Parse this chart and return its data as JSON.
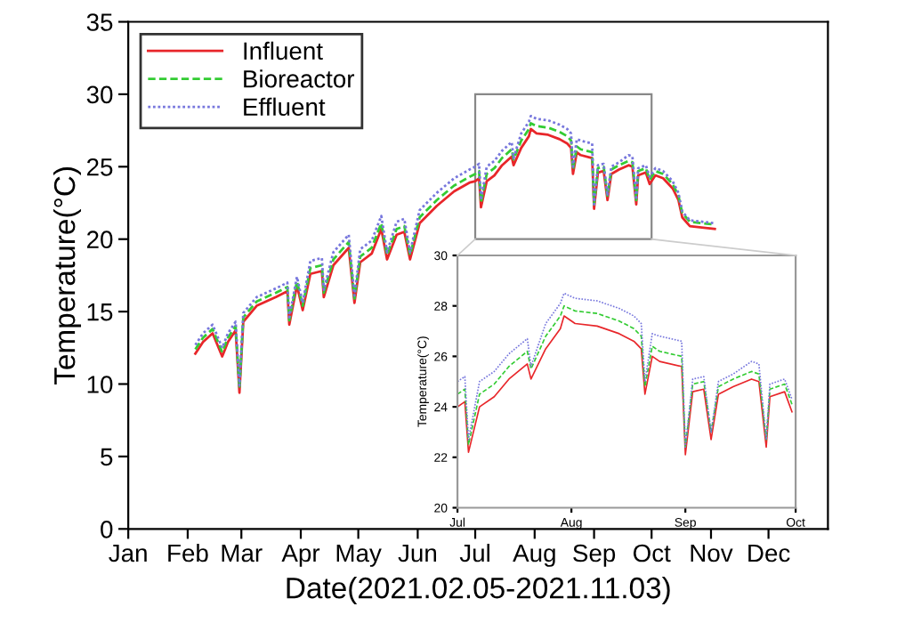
{
  "chart_data": [
    {
      "type": "line",
      "xlabel": "Date(2021.02.05-2021.11.03)",
      "ylabel": "Temperature(°C)",
      "x": [
        "2021-02-05",
        "2021-02-09",
        "2021-02-14",
        "2021-02-19",
        "2021-02-22",
        "2021-02-26",
        "2021-02-28",
        "2021-03-02",
        "2021-03-09",
        "2021-03-19",
        "2021-03-25",
        "2021-03-26",
        "2021-03-30",
        "2021-04-02",
        "2021-04-06",
        "2021-04-12",
        "2021-04-13",
        "2021-04-18",
        "2021-04-26",
        "2021-04-29",
        "2021-05-02",
        "2021-05-08",
        "2021-05-13",
        "2021-05-16",
        "2021-05-21",
        "2021-05-25",
        "2021-05-28",
        "2021-06-02",
        "2021-06-11",
        "2021-06-20",
        "2021-06-28",
        "2021-07-01",
        "2021-07-03",
        "2021-07-04",
        "2021-07-07",
        "2021-07-11",
        "2021-07-15",
        "2021-07-20",
        "2021-07-21",
        "2021-07-25",
        "2021-07-29",
        "2021-07-30",
        "2021-08-02",
        "2021-08-08",
        "2021-08-14",
        "2021-08-18",
        "2021-08-20",
        "2021-08-21",
        "2021-08-23",
        "2021-08-25",
        "2021-08-31",
        "2021-09-01",
        "2021-09-03",
        "2021-09-06",
        "2021-09-08",
        "2021-09-10",
        "2021-09-14",
        "2021-09-19",
        "2021-09-21",
        "2021-09-23",
        "2021-09-24",
        "2021-09-28",
        "2021-09-30",
        "2021-10-03",
        "2021-10-07",
        "2021-10-12",
        "2021-10-15",
        "2021-10-17",
        "2021-10-21",
        "2021-11-03"
      ],
      "series": [
        {
          "name": "Influent",
          "color": "#e8262a",
          "line_style": "solid",
          "values": [
            12.1,
            12.9,
            13.5,
            11.9,
            12.9,
            13.7,
            9.4,
            14.3,
            15.4,
            16.0,
            16.4,
            14.1,
            16.8,
            15.1,
            17.6,
            17.8,
            16.0,
            18.2,
            19.4,
            15.6,
            18.4,
            19.0,
            20.7,
            18.6,
            20.3,
            20.5,
            18.6,
            21.1,
            22.3,
            23.3,
            23.9,
            24.0,
            24.2,
            22.2,
            24.0,
            24.4,
            25.1,
            25.7,
            25.1,
            26.3,
            27.1,
            27.6,
            27.3,
            27.2,
            26.9,
            26.6,
            26.3,
            24.5,
            26.0,
            25.8,
            25.6,
            22.1,
            24.6,
            24.7,
            22.7,
            24.5,
            24.8,
            25.1,
            25.0,
            22.4,
            24.4,
            24.6,
            23.8,
            24.4,
            24.2,
            23.5,
            22.7,
            21.5,
            20.9,
            20.7
          ]
        },
        {
          "name": "Bioreactor",
          "color": "#33cc33",
          "line_style": "dashed",
          "values": [
            12.4,
            13.2,
            13.8,
            12.2,
            13.2,
            14.0,
            9.7,
            14.6,
            15.7,
            16.3,
            16.7,
            14.4,
            17.1,
            15.4,
            18.0,
            18.2,
            16.3,
            18.6,
            19.8,
            15.9,
            18.8,
            19.4,
            21.1,
            18.9,
            20.7,
            20.9,
            18.9,
            21.5,
            22.7,
            23.7,
            24.3,
            24.5,
            24.7,
            22.5,
            24.5,
            24.9,
            25.6,
            26.2,
            25.5,
            26.8,
            27.6,
            28.0,
            27.8,
            27.7,
            27.4,
            27.1,
            26.8,
            24.8,
            26.4,
            26.2,
            26.0,
            22.4,
            24.9,
            25.0,
            23.0,
            24.8,
            25.1,
            25.4,
            25.3,
            22.7,
            24.7,
            24.9,
            24.1,
            24.7,
            24.5,
            23.8,
            23.0,
            21.8,
            21.2,
            21.0
          ]
        },
        {
          "name": "Effluent",
          "color": "#7777dd",
          "line_style": "dotted",
          "values": [
            12.7,
            13.5,
            14.1,
            12.5,
            13.5,
            14.3,
            9.9,
            14.9,
            16.0,
            16.6,
            17.0,
            14.6,
            17.4,
            15.6,
            18.5,
            18.7,
            16.5,
            19.1,
            20.3,
            16.1,
            19.3,
            19.9,
            21.6,
            19.1,
            21.2,
            21.4,
            19.1,
            22.0,
            23.2,
            24.2,
            24.8,
            25.0,
            25.2,
            22.7,
            25.0,
            25.4,
            26.1,
            26.7,
            25.6,
            27.3,
            28.1,
            28.5,
            28.3,
            28.2,
            27.9,
            27.6,
            27.3,
            25.0,
            26.9,
            26.8,
            26.6,
            22.4,
            25.1,
            25.2,
            23.0,
            25.0,
            25.3,
            25.8,
            25.7,
            22.7,
            24.9,
            25.1,
            24.3,
            24.9,
            24.7,
            24.0,
            23.2,
            21.9,
            21.3,
            21.1
          ]
        }
      ],
      "xlim": [
        "2021-01-01",
        "2022-01-01"
      ],
      "xticks": [
        {
          "value": "2021-01-01",
          "label": "Jan"
        },
        {
          "value": "2021-02-01",
          "label": "Feb"
        },
        {
          "value": "2021-03-01",
          "label": "Mar"
        },
        {
          "value": "2021-04-01",
          "label": "Apr"
        },
        {
          "value": "2021-05-01",
          "label": "May"
        },
        {
          "value": "2021-06-01",
          "label": "Jun"
        },
        {
          "value": "2021-07-01",
          "label": "Jul"
        },
        {
          "value": "2021-08-01",
          "label": "Aug"
        },
        {
          "value": "2021-09-01",
          "label": "Sep"
        },
        {
          "value": "2021-10-01",
          "label": "Oct"
        },
        {
          "value": "2021-11-01",
          "label": "Nov"
        },
        {
          "value": "2021-12-01",
          "label": "Dec"
        }
      ],
      "ylim": [
        0,
        35
      ],
      "yticks": [
        0,
        5,
        10,
        15,
        20,
        25,
        30,
        35
      ],
      "grid": false,
      "legend": "top left",
      "marker": "none"
    },
    {
      "type": "line",
      "ylabel": "Temperature(°C)",
      "x": [
        "2021-07-01",
        "2021-07-03",
        "2021-07-04",
        "2021-07-07",
        "2021-07-11",
        "2021-07-15",
        "2021-07-20",
        "2021-07-21",
        "2021-07-25",
        "2021-07-29",
        "2021-07-30",
        "2021-08-02",
        "2021-08-08",
        "2021-08-14",
        "2021-08-18",
        "2021-08-20",
        "2021-08-21",
        "2021-08-23",
        "2021-08-25",
        "2021-08-31",
        "2021-09-01",
        "2021-09-03",
        "2021-09-06",
        "2021-09-08",
        "2021-09-10",
        "2021-09-14",
        "2021-09-19",
        "2021-09-21",
        "2021-09-23",
        "2021-09-24",
        "2021-09-28",
        "2021-09-30"
      ],
      "series": [
        {
          "color": "#e8262a",
          "line_style": "solid",
          "values": [
            24.0,
            24.2,
            22.2,
            24.0,
            24.4,
            25.1,
            25.7,
            25.1,
            26.3,
            27.1,
            27.6,
            27.3,
            27.2,
            26.9,
            26.6,
            26.3,
            24.5,
            26.0,
            25.8,
            25.6,
            22.1,
            24.6,
            24.7,
            22.7,
            24.5,
            24.8,
            25.1,
            25.0,
            22.4,
            24.4,
            24.6,
            23.8
          ]
        },
        {
          "color": "#33cc33",
          "line_style": "dashed",
          "values": [
            24.5,
            24.7,
            22.5,
            24.5,
            24.9,
            25.6,
            26.2,
            25.5,
            26.8,
            27.6,
            28.0,
            27.8,
            27.7,
            27.4,
            27.1,
            26.8,
            24.8,
            26.4,
            26.2,
            26.0,
            22.4,
            24.9,
            25.0,
            23.0,
            24.8,
            25.1,
            25.4,
            25.3,
            22.7,
            24.7,
            24.9,
            24.1
          ]
        },
        {
          "color": "#7777dd",
          "line_style": "dotted",
          "values": [
            25.0,
            25.2,
            22.7,
            25.0,
            25.4,
            26.1,
            26.7,
            25.6,
            27.3,
            28.1,
            28.5,
            28.3,
            28.2,
            27.9,
            27.6,
            27.3,
            25.0,
            26.9,
            26.8,
            26.6,
            22.4,
            25.1,
            25.2,
            23.0,
            25.0,
            25.3,
            25.8,
            25.7,
            22.7,
            24.9,
            25.1,
            24.3
          ]
        }
      ],
      "xlim": [
        "2021-07-01",
        "2021-10-01"
      ],
      "xticks": [
        {
          "value": "2021-07-01",
          "label": "Jul"
        },
        {
          "value": "2021-08-01",
          "label": "Aug"
        },
        {
          "value": "2021-09-01",
          "label": "Sep"
        },
        {
          "value": "2021-10-01",
          "label": "Oct"
        }
      ],
      "ylim": [
        20,
        30
      ],
      "yticks": [
        20,
        22,
        24,
        26,
        28,
        30
      ],
      "grid": false,
      "legend": false,
      "marker": "none"
    }
  ]
}
